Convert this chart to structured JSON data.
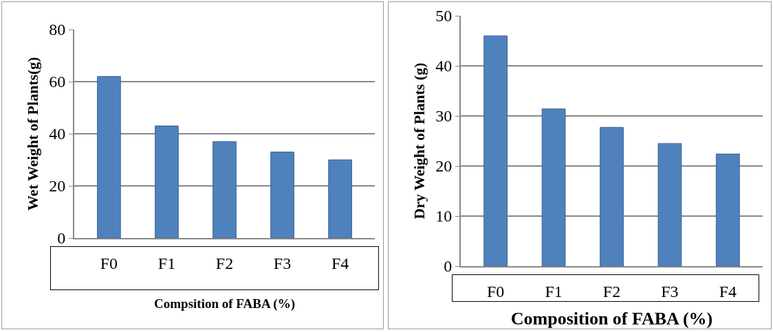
{
  "chart_data": [
    {
      "type": "bar",
      "categories": [
        "F0",
        "F1",
        "F2",
        "F3",
        "F4"
      ],
      "values": [
        62,
        43,
        37,
        33,
        30
      ],
      "color": "#4f81bd",
      "ylabel": "Wet Weight of Plants(g)",
      "xlabel": "Compsition of FABA (%)",
      "ylim": [
        0,
        80
      ],
      "yticks": [
        0,
        20,
        40,
        60,
        80
      ],
      "grid": "y"
    },
    {
      "type": "bar",
      "categories": [
        "F0",
        "F1",
        "F2",
        "F3",
        "F4"
      ],
      "values": [
        46,
        31.4,
        27.7,
        24.5,
        22.4
      ],
      "color": "#4f81bd",
      "ylabel": "Dry Weight of Plants (g)",
      "xlabel": "Composition of FABA (%)",
      "ylim": [
        0,
        50
      ],
      "yticks": [
        0,
        10,
        20,
        30,
        40,
        50
      ],
      "grid": "y"
    }
  ]
}
